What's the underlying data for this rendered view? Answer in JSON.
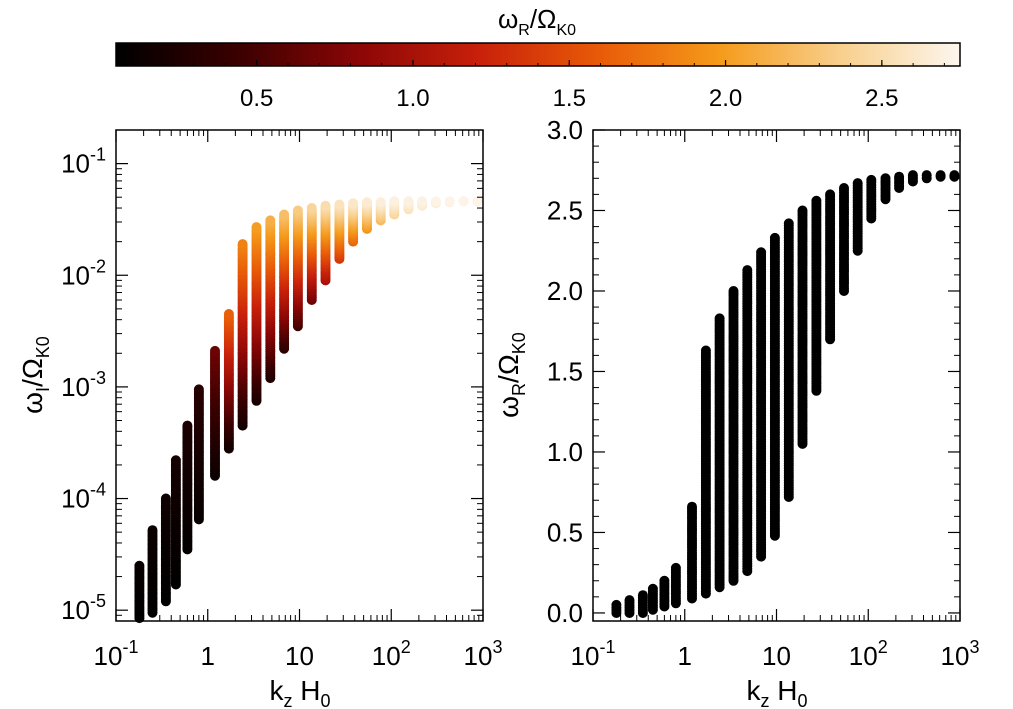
{
  "colorbar": {
    "title_main": "ω",
    "title_sub1": "R",
    "title_mid": "/Ω",
    "title_sub2": "K0",
    "range": [
      0.05,
      2.75
    ],
    "ticks": [
      "0.5",
      "1.0",
      "1.5",
      "2.0",
      "2.5"
    ],
    "tick_values": [
      0.5,
      1.0,
      1.5,
      2.0,
      2.5
    ],
    "colormap": [
      "#000000",
      "#3a0000",
      "#8a0606",
      "#c8200a",
      "#e85a08",
      "#f59a1a",
      "#f8cf8c",
      "#fdf6ee"
    ]
  },
  "chart_data": [
    {
      "type": "scatter",
      "name": "growth-rate",
      "xscale": "log",
      "yscale": "log",
      "xlim": [
        0.1,
        1000
      ],
      "ylim": [
        8e-06,
        0.2
      ],
      "xticks": [
        {
          "base": "10",
          "exp": "-1",
          "value": 0.1
        },
        {
          "base": "1",
          "exp": "",
          "value": 1
        },
        {
          "base": "10",
          "exp": "",
          "value": 10
        },
        {
          "base": "10",
          "exp": "2",
          "value": 100
        },
        {
          "base": "10",
          "exp": "3",
          "value": 1000
        }
      ],
      "yticks": [
        {
          "base": "10",
          "exp": "-5",
          "value": 1e-05
        },
        {
          "base": "10",
          "exp": "-4",
          "value": 0.0001
        },
        {
          "base": "10",
          "exp": "-3",
          "value": 0.001
        },
        {
          "base": "10",
          "exp": "-2",
          "value": 0.01
        },
        {
          "base": "10",
          "exp": "-1",
          "value": 0.1
        }
      ],
      "xlabel": {
        "a": "k",
        "a_sub": "z",
        "b": " H",
        "b_sub": "0"
      },
      "ylabel": {
        "a": "ω",
        "a_sub": "I",
        "b": "/Ω",
        "b_sub": "K0"
      },
      "columns": [
        {
          "kz": 0.18,
          "ymin": 8.5e-06,
          "ymax": 2.5e-05,
          "wrmin": 0.05,
          "wrmax": 0.1
        },
        {
          "kz": 0.25,
          "ymin": 9.5e-06,
          "ymax": 5.2e-05,
          "wrmin": 0.05,
          "wrmax": 0.12
        },
        {
          "kz": 0.35,
          "ymin": 1.2e-05,
          "ymax": 0.0001,
          "wrmin": 0.05,
          "wrmax": 0.14
        },
        {
          "kz": 0.45,
          "ymin": 1.7e-05,
          "ymax": 0.00022,
          "wrmin": 0.06,
          "wrmax": 0.18
        },
        {
          "kz": 0.6,
          "ymin": 3.5e-05,
          "ymax": 0.00045,
          "wrmin": 0.07,
          "wrmax": 0.22
        },
        {
          "kz": 0.8,
          "ymin": 6.5e-05,
          "ymax": 0.00095,
          "wrmin": 0.09,
          "wrmax": 0.3
        },
        {
          "kz": 1.2,
          "ymin": 0.00016,
          "ymax": 0.0021,
          "wrmin": 0.12,
          "wrmax": 0.67
        },
        {
          "kz": 1.7,
          "ymin": 0.00028,
          "ymax": 0.0045,
          "wrmin": 0.14,
          "wrmax": 1.63
        },
        {
          "kz": 2.4,
          "ymin": 0.00045,
          "ymax": 0.019,
          "wrmin": 0.17,
          "wrmax": 1.83
        },
        {
          "kz": 3.4,
          "ymin": 0.00075,
          "ymax": 0.027,
          "wrmin": 0.21,
          "wrmax": 2.0
        },
        {
          "kz": 4.8,
          "ymin": 0.0012,
          "ymax": 0.031,
          "wrmin": 0.26,
          "wrmax": 2.13
        },
        {
          "kz": 6.8,
          "ymin": 0.0022,
          "ymax": 0.035,
          "wrmin": 0.34,
          "wrmax": 2.24
        },
        {
          "kz": 9.6,
          "ymin": 0.0035,
          "ymax": 0.038,
          "wrmin": 0.47,
          "wrmax": 2.33
        },
        {
          "kz": 13.6,
          "ymin": 0.006,
          "ymax": 0.04,
          "wrmin": 0.68,
          "wrmax": 2.42
        },
        {
          "kz": 19.2,
          "ymin": 0.009,
          "ymax": 0.042,
          "wrmin": 1.0,
          "wrmax": 2.5
        },
        {
          "kz": 27.2,
          "ymin": 0.014,
          "ymax": 0.043,
          "wrmin": 1.35,
          "wrmax": 2.56
        },
        {
          "kz": 38.4,
          "ymin": 0.02,
          "ymax": 0.044,
          "wrmin": 1.65,
          "wrmax": 2.6
        },
        {
          "kz": 54.4,
          "ymin": 0.026,
          "ymax": 0.045,
          "wrmin": 1.95,
          "wrmax": 2.64
        },
        {
          "kz": 76.8,
          "ymin": 0.031,
          "ymax": 0.045,
          "wrmin": 2.22,
          "wrmax": 2.67
        },
        {
          "kz": 108,
          "ymin": 0.035,
          "ymax": 0.046,
          "wrmin": 2.42,
          "wrmax": 2.69
        },
        {
          "kz": 154,
          "ymin": 0.039,
          "ymax": 0.046,
          "wrmin": 2.55,
          "wrmax": 2.7
        },
        {
          "kz": 217,
          "ymin": 0.042,
          "ymax": 0.046,
          "wrmin": 2.63,
          "wrmax": 2.71
        },
        {
          "kz": 307,
          "ymin": 0.044,
          "ymax": 0.046,
          "wrmin": 2.68,
          "wrmax": 2.72
        },
        {
          "kz": 434,
          "ymin": 0.045,
          "ymax": 0.046,
          "wrmin": 2.7,
          "wrmax": 2.72
        },
        {
          "kz": 614,
          "ymin": 0.046,
          "ymax": 0.046,
          "wrmin": 2.71,
          "wrmax": 2.72
        },
        {
          "kz": 868,
          "ymin": 0.046,
          "ymax": 0.046,
          "wrmin": 2.71,
          "wrmax": 2.72
        }
      ]
    },
    {
      "type": "scatter",
      "name": "real-frequency",
      "xscale": "log",
      "yscale": "linear",
      "xlim": [
        0.1,
        1000
      ],
      "ylim": [
        -0.05,
        3.0
      ],
      "xticks": [
        {
          "base": "10",
          "exp": "-1",
          "value": 0.1
        },
        {
          "base": "1",
          "exp": "",
          "value": 1
        },
        {
          "base": "10",
          "exp": "",
          "value": 10
        },
        {
          "base": "10",
          "exp": "2",
          "value": 100
        },
        {
          "base": "10",
          "exp": "3",
          "value": 1000
        }
      ],
      "yticks": [
        "0.0",
        "0.5",
        "1.0",
        "1.5",
        "2.0",
        "2.5",
        "3.0"
      ],
      "ytick_values": [
        0,
        0.5,
        1.0,
        1.5,
        2.0,
        2.5,
        3.0
      ],
      "xlabel": {
        "a": "k",
        "a_sub": "z",
        "b": " H",
        "b_sub": "0"
      },
      "ylabel": {
        "a": "ω",
        "a_sub": "R",
        "b": "/Ω",
        "b_sub": "K0"
      },
      "columns": [
        {
          "kz": 0.18,
          "ymin": 0.0,
          "ymax": 0.05
        },
        {
          "kz": 0.25,
          "ymin": 0.0,
          "ymax": 0.08
        },
        {
          "kz": 0.35,
          "ymin": 0.0,
          "ymax": 0.11
        },
        {
          "kz": 0.45,
          "ymin": 0.02,
          "ymax": 0.15
        },
        {
          "kz": 0.6,
          "ymin": 0.04,
          "ymax": 0.2
        },
        {
          "kz": 0.8,
          "ymin": 0.06,
          "ymax": 0.28
        },
        {
          "kz": 1.2,
          "ymin": 0.09,
          "ymax": 0.66
        },
        {
          "kz": 1.7,
          "ymin": 0.12,
          "ymax": 1.63
        },
        {
          "kz": 2.4,
          "ymin": 0.16,
          "ymax": 1.83
        },
        {
          "kz": 3.4,
          "ymin": 0.2,
          "ymax": 2.0
        },
        {
          "kz": 4.8,
          "ymin": 0.26,
          "ymax": 2.13
        },
        {
          "kz": 6.8,
          "ymin": 0.35,
          "ymax": 2.24
        },
        {
          "kz": 9.6,
          "ymin": 0.48,
          "ymax": 2.33
        },
        {
          "kz": 13.6,
          "ymin": 0.72,
          "ymax": 2.42
        },
        {
          "kz": 19.2,
          "ymin": 1.05,
          "ymax": 2.5
        },
        {
          "kz": 27.2,
          "ymin": 1.38,
          "ymax": 2.56
        },
        {
          "kz": 38.4,
          "ymin": 1.7,
          "ymax": 2.6
        },
        {
          "kz": 54.4,
          "ymin": 2.0,
          "ymax": 2.64
        },
        {
          "kz": 76.8,
          "ymin": 2.25,
          "ymax": 2.67
        },
        {
          "kz": 108,
          "ymin": 2.45,
          "ymax": 2.69
        },
        {
          "kz": 154,
          "ymin": 2.57,
          "ymax": 2.7
        },
        {
          "kz": 217,
          "ymin": 2.64,
          "ymax": 2.71
        },
        {
          "kz": 307,
          "ymin": 2.68,
          "ymax": 2.72
        },
        {
          "kz": 434,
          "ymin": 2.7,
          "ymax": 2.72
        },
        {
          "kz": 614,
          "ymin": 2.71,
          "ymax": 2.72
        },
        {
          "kz": 868,
          "ymin": 2.71,
          "ymax": 2.72
        }
      ]
    }
  ]
}
